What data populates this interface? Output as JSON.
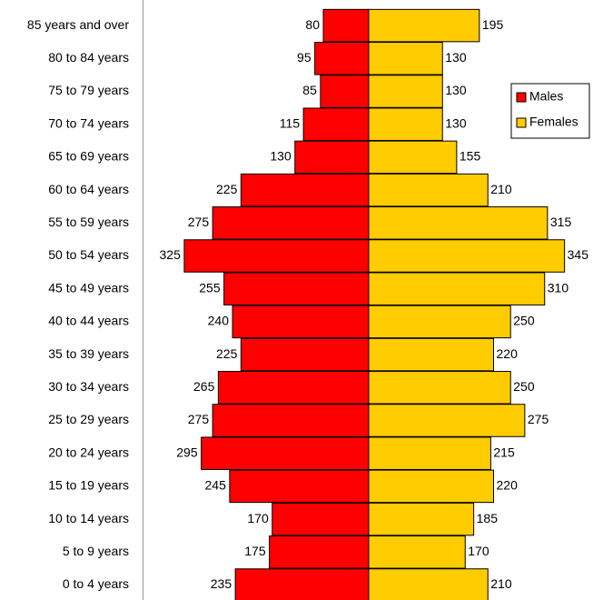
{
  "chart_data": {
    "type": "pyramid",
    "categories": [
      "85 years and over",
      "80 to 84 years",
      "75 to 79 years",
      "70 to 74 years",
      "65 to 69 years",
      "60 to 64 years",
      "55 to 59 years",
      "50 to 54 years",
      "45 to 49 years",
      "40 to 44 years",
      "35 to 39 years",
      "30 to 34 years",
      "25 to 29 years",
      "20 to 24 years",
      "15 to 19 years",
      "10 to 14 years",
      "5 to 9 years",
      "0 to 4 years"
    ],
    "series": [
      {
        "name": "Males",
        "color": "#ff0000",
        "values": [
          80,
          95,
          85,
          115,
          130,
          225,
          275,
          325,
          255,
          240,
          225,
          265,
          275,
          295,
          245,
          170,
          175,
          235
        ]
      },
      {
        "name": "Females",
        "color": "#ffcc00",
        "values": [
          195,
          130,
          130,
          130,
          155,
          210,
          315,
          345,
          310,
          250,
          220,
          250,
          275,
          215,
          220,
          185,
          170,
          210
        ]
      }
    ],
    "legend": "right"
  }
}
